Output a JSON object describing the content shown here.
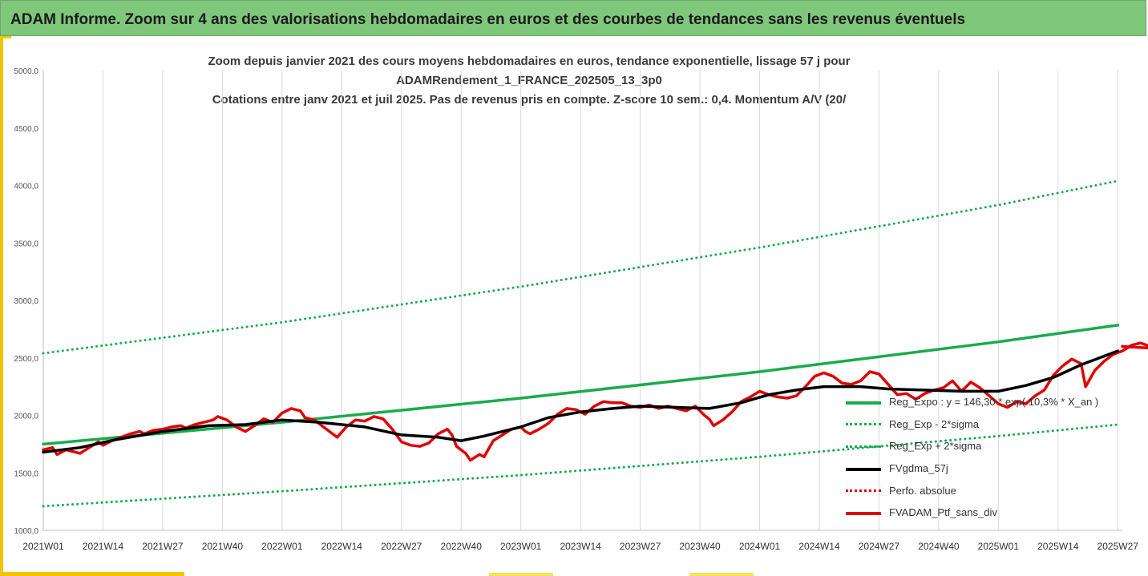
{
  "banner": {
    "title": "ADAM Informe. Zoom sur 4 ans des valorisations hebdomadaires en euros et des courbes de tendances sans les revenus éventuels"
  },
  "chart_data": {
    "type": "line",
    "title_lines": [
      "Zoom depuis janvier 2021 des cours moyens hebdomadaires  en euros, tendance exponentielle, lissage 57 j pour",
      "ADAMRendement_1_FRANCE_202505_13_3p0",
      "Cotations entre janv 2021 et juil 2025. Pas de revenus pris en compte. Z-score 10 sem.: 0,4. Momentum A/V (20/"
    ],
    "xlabel": "",
    "ylabel": "",
    "ylim": [
      1000,
      5000
    ],
    "y_ticks": [
      "1000,0",
      "1500,0",
      "2000,0",
      "2500,0",
      "3000,0",
      "3500,0",
      "4000,0",
      "4500,0",
      "5000,0"
    ],
    "x_range": [
      0,
      235
    ],
    "x_ticks": [
      {
        "label": "2021W01",
        "week": 0
      },
      {
        "label": "2021W14",
        "week": 13
      },
      {
        "label": "2021W27",
        "week": 26
      },
      {
        "label": "2021W40",
        "week": 39
      },
      {
        "label": "2022W01",
        "week": 52
      },
      {
        "label": "2022W14",
        "week": 65
      },
      {
        "label": "2022W27",
        "week": 78
      },
      {
        "label": "2022W40",
        "week": 91
      },
      {
        "label": "2023W01",
        "week": 104
      },
      {
        "label": "2023W14",
        "week": 117
      },
      {
        "label": "2023W27",
        "week": 130
      },
      {
        "label": "2023W40",
        "week": 143
      },
      {
        "label": "2024W01",
        "week": 156
      },
      {
        "label": "2024W14",
        "week": 169
      },
      {
        "label": "2024W27",
        "week": 182
      },
      {
        "label": "2024W40",
        "week": 195
      },
      {
        "label": "2025W01",
        "week": 208
      },
      {
        "label": "2025W14",
        "week": 221
      },
      {
        "label": "2025W27",
        "week": 234
      }
    ],
    "grid": "vertical",
    "legend_position": "bottom-right",
    "series": [
      {
        "name": "Reg_Expo : y = 146,30 * exp( 10,3% *  X_an )",
        "color": "#1aab4c",
        "style": "solid",
        "points": [
          [
            0,
            1750
          ],
          [
            52,
            1940
          ],
          [
            104,
            2150
          ],
          [
            156,
            2380
          ],
          [
            208,
            2640
          ],
          [
            234,
            2785
          ]
        ]
      },
      {
        "name": "Reg_Exp - 2*sigma",
        "color": "#1aab4c",
        "style": "dotted",
        "points": [
          [
            0,
            1210
          ],
          [
            52,
            1340
          ],
          [
            104,
            1480
          ],
          [
            156,
            1640
          ],
          [
            208,
            1820
          ],
          [
            234,
            1920
          ]
        ]
      },
      {
        "name": "Reg_Exp + 2*sigma",
        "color": "#1aab4c",
        "style": "dotted",
        "points": [
          [
            0,
            2540
          ],
          [
            52,
            2810
          ],
          [
            104,
            3120
          ],
          [
            156,
            3460
          ],
          [
            208,
            3830
          ],
          [
            234,
            4040
          ]
        ]
      },
      {
        "name": "FVgdma_57j",
        "color": "#000000",
        "style": "solid",
        "points": [
          [
            0,
            1680
          ],
          [
            8,
            1720
          ],
          [
            16,
            1790
          ],
          [
            26,
            1860
          ],
          [
            36,
            1910
          ],
          [
            44,
            1920
          ],
          [
            52,
            1960
          ],
          [
            60,
            1940
          ],
          [
            70,
            1900
          ],
          [
            78,
            1830
          ],
          [
            86,
            1810
          ],
          [
            91,
            1780
          ],
          [
            96,
            1820
          ],
          [
            104,
            1900
          ],
          [
            110,
            1980
          ],
          [
            117,
            2030
          ],
          [
            124,
            2060
          ],
          [
            130,
            2080
          ],
          [
            138,
            2070
          ],
          [
            145,
            2060
          ],
          [
            152,
            2110
          ],
          [
            158,
            2180
          ],
          [
            164,
            2220
          ],
          [
            170,
            2250
          ],
          [
            178,
            2250
          ],
          [
            184,
            2230
          ],
          [
            192,
            2220
          ],
          [
            200,
            2210
          ],
          [
            208,
            2210
          ],
          [
            214,
            2260
          ],
          [
            220,
            2330
          ],
          [
            226,
            2440
          ],
          [
            234,
            2560
          ]
        ]
      },
      {
        "name": "Perfo. absolue",
        "color": "#e00000",
        "style": "dotted",
        "points": []
      },
      {
        "name": "FVADAM_Ptf_sans_div",
        "color": "#e00000",
        "style": "solid",
        "points": [
          [
            0,
            1700
          ],
          [
            2,
            1720
          ],
          [
            3,
            1660
          ],
          [
            5,
            1700
          ],
          [
            7,
            1680
          ],
          [
            8,
            1670
          ],
          [
            10,
            1720
          ],
          [
            12,
            1770
          ],
          [
            13,
            1740
          ],
          [
            15,
            1780
          ],
          [
            17,
            1810
          ],
          [
            19,
            1840
          ],
          [
            21,
            1860
          ],
          [
            22,
            1840
          ],
          [
            24,
            1870
          ],
          [
            26,
            1880
          ],
          [
            28,
            1900
          ],
          [
            30,
            1910
          ],
          [
            31,
            1890
          ],
          [
            33,
            1920
          ],
          [
            35,
            1940
          ],
          [
            37,
            1960
          ],
          [
            38,
            1990
          ],
          [
            40,
            1960
          ],
          [
            42,
            1900
          ],
          [
            44,
            1860
          ],
          [
            46,
            1910
          ],
          [
            48,
            1970
          ],
          [
            50,
            1940
          ],
          [
            52,
            2020
          ],
          [
            54,
            2060
          ],
          [
            56,
            2040
          ],
          [
            57,
            1980
          ],
          [
            59,
            1960
          ],
          [
            61,
            1900
          ],
          [
            63,
            1840
          ],
          [
            64,
            1810
          ],
          [
            66,
            1900
          ],
          [
            68,
            1960
          ],
          [
            70,
            1950
          ],
          [
            72,
            1990
          ],
          [
            74,
            1970
          ],
          [
            76,
            1880
          ],
          [
            78,
            1770
          ],
          [
            80,
            1740
          ],
          [
            82,
            1730
          ],
          [
            84,
            1760
          ],
          [
            86,
            1840
          ],
          [
            88,
            1880
          ],
          [
            89,
            1830
          ],
          [
            90,
            1730
          ],
          [
            92,
            1670
          ],
          [
            93,
            1610
          ],
          [
            95,
            1660
          ],
          [
            96,
            1640
          ],
          [
            98,
            1780
          ],
          [
            100,
            1830
          ],
          [
            102,
            1880
          ],
          [
            104,
            1900
          ],
          [
            105,
            1860
          ],
          [
            106,
            1840
          ],
          [
            108,
            1880
          ],
          [
            110,
            1930
          ],
          [
            112,
            2010
          ],
          [
            114,
            2060
          ],
          [
            116,
            2050
          ],
          [
            118,
            2010
          ],
          [
            120,
            2080
          ],
          [
            122,
            2120
          ],
          [
            124,
            2110
          ],
          [
            126,
            2110
          ],
          [
            128,
            2080
          ],
          [
            130,
            2070
          ],
          [
            132,
            2090
          ],
          [
            134,
            2060
          ],
          [
            136,
            2080
          ],
          [
            138,
            2060
          ],
          [
            140,
            2040
          ],
          [
            142,
            2080
          ],
          [
            144,
            2000
          ],
          [
            145,
            1970
          ],
          [
            146,
            1910
          ],
          [
            148,
            1960
          ],
          [
            150,
            2030
          ],
          [
            152,
            2120
          ],
          [
            154,
            2160
          ],
          [
            156,
            2210
          ],
          [
            158,
            2180
          ],
          [
            160,
            2160
          ],
          [
            162,
            2150
          ],
          [
            164,
            2170
          ],
          [
            166,
            2250
          ],
          [
            168,
            2340
          ],
          [
            170,
            2370
          ],
          [
            172,
            2340
          ],
          [
            174,
            2280
          ],
          [
            176,
            2270
          ],
          [
            178,
            2300
          ],
          [
            180,
            2380
          ],
          [
            182,
            2360
          ],
          [
            184,
            2270
          ],
          [
            186,
            2180
          ],
          [
            188,
            2190
          ],
          [
            190,
            2140
          ],
          [
            192,
            2190
          ],
          [
            194,
            2220
          ],
          [
            196,
            2240
          ],
          [
            198,
            2300
          ],
          [
            200,
            2210
          ],
          [
            202,
            2290
          ],
          [
            204,
            2240
          ],
          [
            206,
            2170
          ],
          [
            208,
            2100
          ],
          [
            210,
            2070
          ],
          [
            212,
            2120
          ],
          [
            214,
            2100
          ],
          [
            216,
            2170
          ],
          [
            218,
            2220
          ],
          [
            220,
            2350
          ],
          [
            222,
            2430
          ],
          [
            224,
            2490
          ],
          [
            226,
            2450
          ],
          [
            227,
            2250
          ],
          [
            229,
            2390
          ],
          [
            231,
            2470
          ],
          [
            233,
            2530
          ],
          [
            235,
            2560
          ],
          [
            237,
            2610
          ],
          [
            239,
            2630
          ],
          [
            241,
            2600
          ],
          [
            243,
            2580
          ],
          [
            235,
            2600
          ]
        ]
      }
    ]
  }
}
